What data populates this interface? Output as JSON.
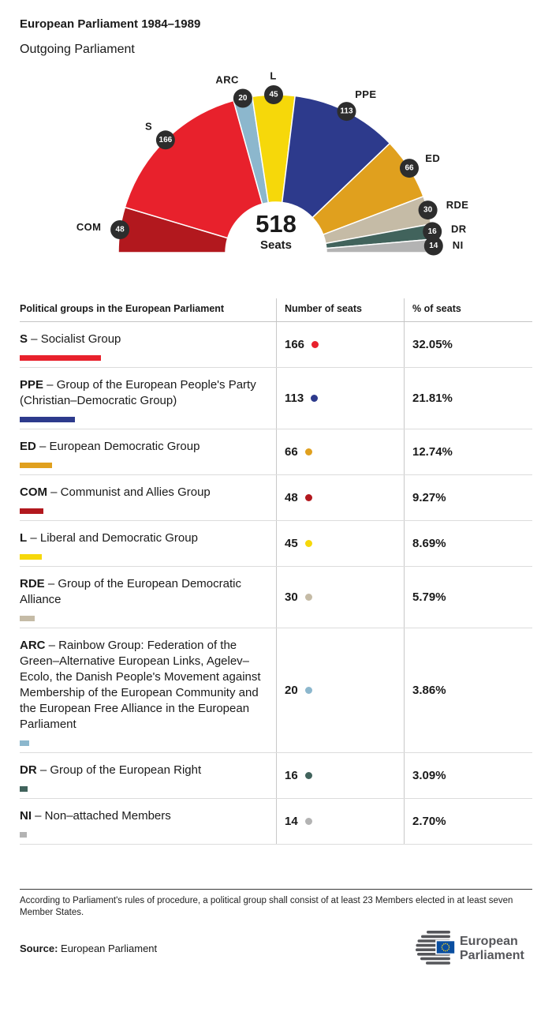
{
  "header": {
    "title": "European Parliament 1984–1989",
    "subtitle": "Outgoing Parliament"
  },
  "chart_data": {
    "type": "hemicycle",
    "total": 518,
    "total_label": "Seats",
    "badge_color": "#2d2d2d",
    "groups": [
      {
        "abbr": "COM",
        "seats": 48,
        "color": "#b2181e"
      },
      {
        "abbr": "S",
        "seats": 166,
        "color": "#e8212c"
      },
      {
        "abbr": "ARC",
        "seats": 20,
        "color": "#8cb7cd"
      },
      {
        "abbr": "L",
        "seats": 45,
        "color": "#f6d80a"
      },
      {
        "abbr": "PPE",
        "seats": 113,
        "color": "#2d3a8c"
      },
      {
        "abbr": "ED",
        "seats": 66,
        "color": "#e0a01e"
      },
      {
        "abbr": "RDE",
        "seats": 30,
        "color": "#c5bba6"
      },
      {
        "abbr": "DR",
        "seats": 16,
        "color": "#41635c"
      },
      {
        "abbr": "NI",
        "seats": 14,
        "color": "#b3b3b3"
      }
    ]
  },
  "table": {
    "headers": [
      "Political groups in the European Parliament",
      "Number of seats",
      "% of seats"
    ],
    "rows": [
      {
        "abbr": "S",
        "rest": " – Socialist Group",
        "seats": "166",
        "seats_num": 166,
        "pct": "32.05%",
        "color": "#e8212c"
      },
      {
        "abbr": "PPE",
        "rest": " – Group of the European People's Party (Christian–Democratic Group)",
        "seats": "113",
        "seats_num": 113,
        "pct": "21.81%",
        "color": "#2d3a8c"
      },
      {
        "abbr": "ED",
        "rest": " – European Democratic Group",
        "seats": "66",
        "seats_num": 66,
        "pct": "12.74%",
        "color": "#e0a01e"
      },
      {
        "abbr": "COM",
        "rest": " – Communist and Allies Group",
        "seats": "48",
        "seats_num": 48,
        "pct": "9.27%",
        "color": "#b2181e"
      },
      {
        "abbr": "L",
        "rest": " – Liberal and Democratic Group",
        "seats": "45",
        "seats_num": 45,
        "pct": "8.69%",
        "color": "#f6d80a"
      },
      {
        "abbr": "RDE",
        "rest": " – Group of the European Democratic Alliance",
        "seats": "30",
        "seats_num": 30,
        "pct": "5.79%",
        "color": "#c5bba6"
      },
      {
        "abbr": "ARC",
        "rest": " – Rainbow Group: Federation of the Green–Alternative European Links, Agelev–Ecolo, the Danish People's Movement against Membership of the European Community and the European Free Alliance in the European Parliament",
        "seats": "20",
        "seats_num": 20,
        "pct": "3.86%",
        "color": "#8cb7cd"
      },
      {
        "abbr": "DR",
        "rest": " – Group of the European Right",
        "seats": "16",
        "seats_num": 16,
        "pct": "3.09%",
        "color": "#41635c"
      },
      {
        "abbr": "NI",
        "rest": " – Non–attached Members",
        "seats": "14",
        "seats_num": 14,
        "pct": "2.70%",
        "color": "#b3b3b3"
      }
    ]
  },
  "footnote": "According to Parliament's rules of procedure, a political group shall consist of at least 23 Members elected in at least seven Member States.",
  "source": {
    "label": "Source:",
    "value": " European Parliament"
  },
  "logo": {
    "line1": "European",
    "line2": "Parliament"
  }
}
